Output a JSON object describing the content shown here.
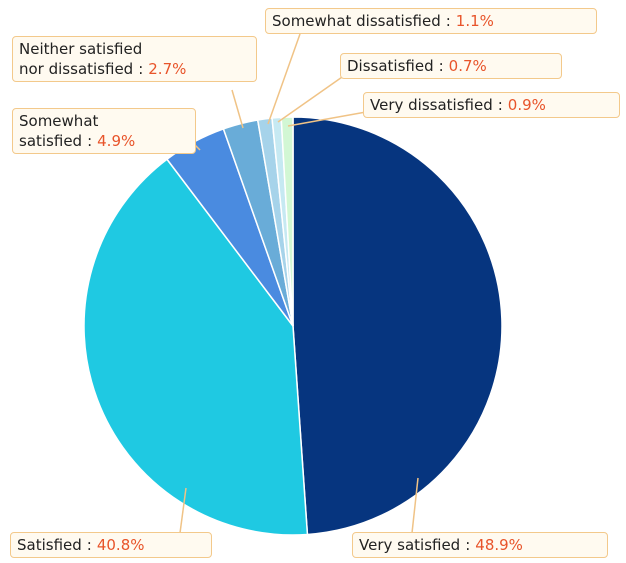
{
  "chart_data": {
    "type": "pie",
    "separator": ":",
    "categories": [
      "Very satisfied",
      "Satisfied",
      "Somewhat\nsatisfied",
      "Neither satisfied\nnor dissatisfied",
      "Somewhat dissatisfied",
      "Dissatisfied",
      "Very dissatisfied"
    ],
    "values": [
      48.9,
      40.8,
      4.9,
      2.7,
      1.1,
      0.7,
      0.9
    ],
    "value_labels": [
      "48.9%",
      "40.8%",
      "4.9%",
      "2.7%",
      "1.1%",
      "0.7%",
      "0.9%"
    ],
    "colors": [
      "#06357f",
      "#1fc9e2",
      "#4a8be0",
      "#69acd8",
      "#a6d3ea",
      "#c6e9f2",
      "#d2f7d4"
    ]
  }
}
